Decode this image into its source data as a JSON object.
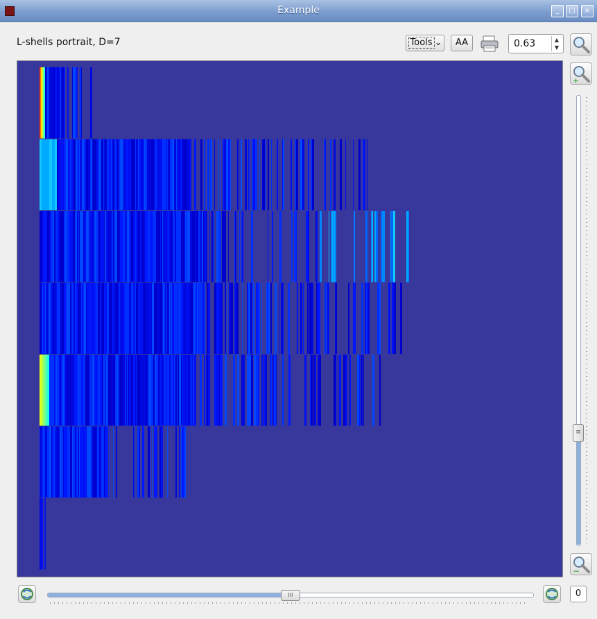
{
  "window": {
    "title": "Example"
  },
  "toolbar": {
    "label": "L-shells portrait, D=7",
    "tools_label": "Tools",
    "aa_label": "AA",
    "zoom_value": "0.63"
  },
  "bottom": {
    "counter": "0"
  },
  "colors": {
    "plot_background": "#38379b",
    "accent": "#8eb0dc"
  },
  "icons": {
    "window": "app-icon",
    "print": "printer-icon",
    "zoom": "magnifier-icon",
    "zoom_in": "zoom-in-icon",
    "zoom_out": "zoom-out-icon",
    "refresh": "refresh-icon"
  },
  "chart_data": {
    "type": "heatmap",
    "title": "",
    "rows": 7,
    "series": [
      {
        "row": 1,
        "extent": 0.1
      },
      {
        "row": 2,
        "extent": 0.63
      },
      {
        "row": 3,
        "extent": 0.71
      },
      {
        "row": 4,
        "extent": 0.7
      },
      {
        "row": 5,
        "extent": 0.66
      },
      {
        "row": 6,
        "extent": 0.28
      },
      {
        "row": 7,
        "extent": 0.01
      }
    ],
    "colormap": [
      "#00007f",
      "#0000ff",
      "#00ffff",
      "#ffff00",
      "#ff0000"
    ]
  }
}
